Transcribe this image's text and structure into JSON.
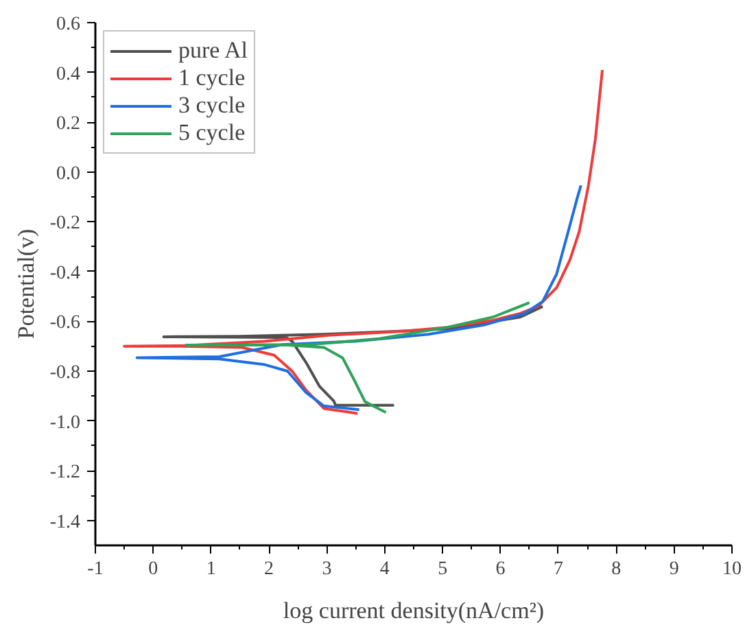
{
  "chart_data": {
    "type": "line",
    "xlabel": "log current density(nA/cm²)",
    "ylabel": "Potential(v)",
    "xlim": [
      -1,
      10
    ],
    "ylim": [
      -1.5,
      0.6
    ],
    "xticks": [
      -1,
      {
        "value": -0.5,
        "label": null
      },
      0,
      {
        "value": 0.5,
        "label": null
      },
      1,
      {
        "value": 1.5,
        "label": null
      },
      2,
      {
        "value": 2.5,
        "label": null
      },
      3,
      {
        "value": 3.5,
        "label": null
      },
      4,
      {
        "value": 4.5,
        "label": null
      },
      5,
      {
        "value": 5.5,
        "label": null
      },
      6,
      {
        "value": 6.5,
        "label": null
      },
      7,
      {
        "value": 7.5,
        "label": null
      },
      8,
      {
        "value": 8.5,
        "label": null
      },
      9,
      {
        "value": 9.5,
        "label": null
      },
      10
    ],
    "yticks": [
      -1.4,
      {
        "value": -1.3,
        "label": null
      },
      -1.2,
      {
        "value": -1.1,
        "label": null
      },
      {
        "value": -1.0,
        "label": "-1.0"
      },
      {
        "value": -0.9,
        "label": null
      },
      -0.8,
      {
        "value": -0.7,
        "label": null
      },
      -0.6,
      {
        "value": -0.5,
        "label": null
      },
      -0.4,
      {
        "value": -0.3,
        "label": null
      },
      -0.2,
      {
        "value": -0.1,
        "label": null
      },
      {
        "value": 0,
        "label": "0.0"
      },
      {
        "value": 0.1,
        "label": null
      },
      0.2,
      {
        "value": 0.3,
        "label": null
      },
      0.4,
      {
        "value": 0.5,
        "label": null
      },
      0.6
    ],
    "grid": false,
    "legend": "top left",
    "line_style": "solid",
    "series": [
      {
        "name": "pure Al",
        "color": "#505050",
        "x": [
          4.16,
          3.15,
          3.12,
          2.87,
          2.64,
          2.4,
          2.3,
          0.18,
          1.5,
          2.95,
          4.2,
          5.08,
          6.34,
          6.73
        ],
        "values": [
          -0.937,
          -0.937,
          -0.92,
          -0.86,
          -0.765,
          -0.68,
          -0.665,
          -0.662,
          -0.66,
          -0.652,
          -0.64,
          -0.63,
          -0.583,
          -0.54
        ]
      },
      {
        "name": "1 cycle",
        "color": "#ef3b3b",
        "x": [
          3.53,
          2.95,
          2.64,
          2.4,
          2.09,
          1.54,
          0.5,
          -0.5,
          0.5,
          1.93,
          3.03,
          4.3,
          5.08,
          5.87,
          6.34,
          6.65,
          6.97,
          7.2,
          7.36,
          7.52,
          7.64,
          7.76
        ],
        "values": [
          -0.97,
          -0.95,
          -0.876,
          -0.8,
          -0.736,
          -0.705,
          -0.7,
          -0.7,
          -0.698,
          -0.68,
          -0.656,
          -0.64,
          -0.624,
          -0.596,
          -0.568,
          -0.54,
          -0.465,
          -0.353,
          -0.24,
          -0.054,
          0.133,
          0.41
        ]
      },
      {
        "name": "3 cycle",
        "color": "#1f6fe0",
        "x": [
          3.56,
          2.95,
          2.64,
          2.32,
          1.93,
          1.14,
          -0.28,
          1.14,
          2.24,
          3.5,
          4.76,
          5.71,
          6.42,
          6.73,
          6.97,
          7.17,
          7.32,
          7.39
        ],
        "values": [
          -0.955,
          -0.94,
          -0.886,
          -0.8,
          -0.774,
          -0.751,
          -0.746,
          -0.742,
          -0.693,
          -0.68,
          -0.652,
          -0.615,
          -0.568,
          -0.52,
          -0.41,
          -0.24,
          -0.11,
          -0.054
        ]
      },
      {
        "name": "5 cycle",
        "color": "#2ea35a",
        "x": [
          4.02,
          3.66,
          3.46,
          3.27,
          2.95,
          2.32,
          0.57,
          2.72,
          3.9,
          5.08,
          5.87,
          6.5
        ],
        "values": [
          -0.966,
          -0.923,
          -0.83,
          -0.746,
          -0.705,
          -0.695,
          -0.695,
          -0.693,
          -0.67,
          -0.624,
          -0.583,
          -0.525
        ]
      }
    ]
  }
}
